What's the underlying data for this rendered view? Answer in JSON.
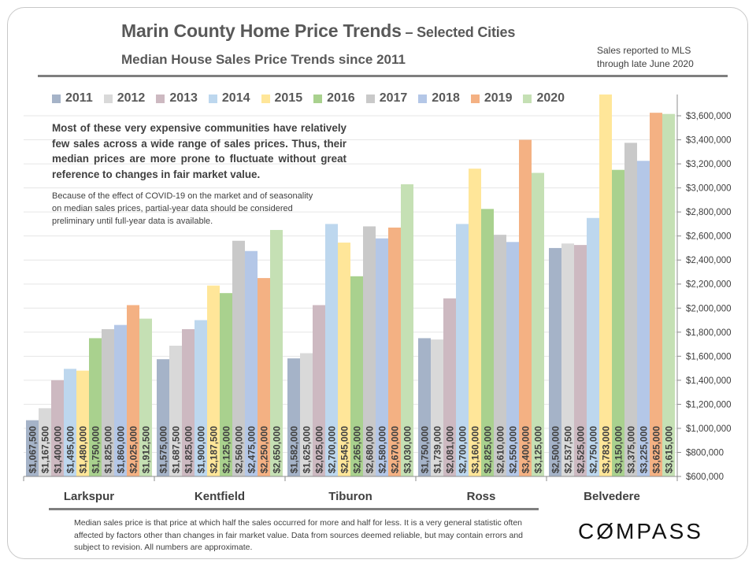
{
  "header": {
    "title_main": "Marin County Home Price Trends",
    "title_suffix": " – Selected Cities",
    "subtitle": "Median House Sales Price Trends since 2011",
    "note_line1": "Sales reported to MLS",
    "note_line2": "through late June 2020"
  },
  "blurb": {
    "main": "Most of these very expensive communities have relatively few sales across a wide range of sales prices. Thus, their median prices are more prone to fluctuate without great reference to changes in fair market value.",
    "secondary": "Because of the effect of COVID-19 on the market and of seasonality on median sales prices, partial-year data should be considered preliminary until full-year data is available."
  },
  "footer": {
    "footnote": "Median sales price is that price at which half the sales occurred for more and half for less. It is a very general statistic often affected by factors other than changes in fair market value. Data from sources deemed reliable, but may contain errors and subject to revision. All numbers are approximate.",
    "logo": "COMPASS"
  },
  "chart_data": {
    "type": "bar",
    "title": "Marin County Home Price Trends – Selected Cities",
    "subtitle": "Median House Sales Price Trends since 2011",
    "xlabel": "",
    "ylabel": "",
    "categories": [
      "Larkspur",
      "Kentfield",
      "Tiburon",
      "Ross",
      "Belvedere"
    ],
    "ylim": [
      600000,
      3600000
    ],
    "ytick_step": 200000,
    "y_axis_side": "right",
    "grid": true,
    "legend_position": "top",
    "series": [
      {
        "name": "2011",
        "color": "#a5b3c8",
        "values": [
          1067500,
          1575000,
          1582000,
          1750000,
          2500000
        ],
        "labels": [
          "$1,067,500",
          "$1,575,000",
          "$1,582,000",
          "$1,750,000",
          "$2,500,000"
        ]
      },
      {
        "name": "2012",
        "color": "#d9d9d9",
        "values": [
          1167500,
          1687500,
          1625000,
          1739000,
          2537500
        ],
        "labels": [
          "$1,167,500",
          "$1,687,500",
          "$1,625,000",
          "$1,739,000",
          "$2,537,500"
        ]
      },
      {
        "name": "2013",
        "color": "#cdb9c1",
        "values": [
          1400000,
          1825000,
          2025000,
          2081000,
          2525000
        ],
        "labels": [
          "$1,400,000",
          "$1,825,000",
          "$2,025,000",
          "$2,081,000",
          "$2,525,000"
        ]
      },
      {
        "name": "2014",
        "color": "#bdd7ee",
        "values": [
          1495000,
          1900000,
          2700000,
          2700000,
          2750000
        ],
        "labels": [
          "$1,495,000",
          "$1,900,000",
          "$2,700,000",
          "$2,700,000",
          "$2,750,000"
        ]
      },
      {
        "name": "2015",
        "color": "#ffe699",
        "values": [
          1480000,
          2187500,
          2545000,
          3160000,
          3783000
        ],
        "labels": [
          "$1,480,000",
          "$2,187,500",
          "$2,545,000",
          "$3,160,000",
          "$3,783,000"
        ]
      },
      {
        "name": "2016",
        "color": "#a9d18e",
        "values": [
          1750000,
          2125000,
          2265000,
          2825000,
          3150000
        ],
        "labels": [
          "$1,750,000",
          "$2,125,000",
          "$2,265,000",
          "$2,825,000",
          "$3,150,000"
        ]
      },
      {
        "name": "2017",
        "color": "#c9c9c9",
        "values": [
          1825000,
          2560000,
          2680000,
          2610000,
          3375000
        ],
        "labels": [
          "$1,825,000",
          "$2,560,000",
          "$2,680,000",
          "$2,610,000",
          "$3,375,000"
        ]
      },
      {
        "name": "2018",
        "color": "#b4c7e7",
        "values": [
          1860000,
          2475000,
          2580000,
          2550000,
          3225000
        ],
        "labels": [
          "$1,860,000",
          "$2,475,000",
          "$2,580,000",
          "$2,550,000",
          "$3,225,000"
        ]
      },
      {
        "name": "2019",
        "color": "#f4b183",
        "values": [
          2025000,
          2250000,
          2670000,
          3400000,
          3625000
        ],
        "labels": [
          "$2,025,000",
          "$2,250,000",
          "$2,670,000",
          "$3,400,000",
          "$3,625,000"
        ]
      },
      {
        "name": "2020",
        "color": "#c5e0b4",
        "values": [
          1912500,
          2650000,
          3030000,
          3125000,
          3615000
        ],
        "labels": [
          "$1,912,500",
          "$2,650,000",
          "$3,030,000",
          "$3,125,000",
          "$3,615,000"
        ]
      }
    ],
    "ytick_labels": [
      "$600,000",
      "$800,000",
      "$1,000,000",
      "$1,200,000",
      "$1,400,000",
      "$1,600,000",
      "$1,800,000",
      "$2,000,000",
      "$2,200,000",
      "$2,400,000",
      "$2,600,000",
      "$2,800,000",
      "$3,000,000",
      "$3,200,000",
      "$3,400,000",
      "$3,600,000"
    ]
  }
}
